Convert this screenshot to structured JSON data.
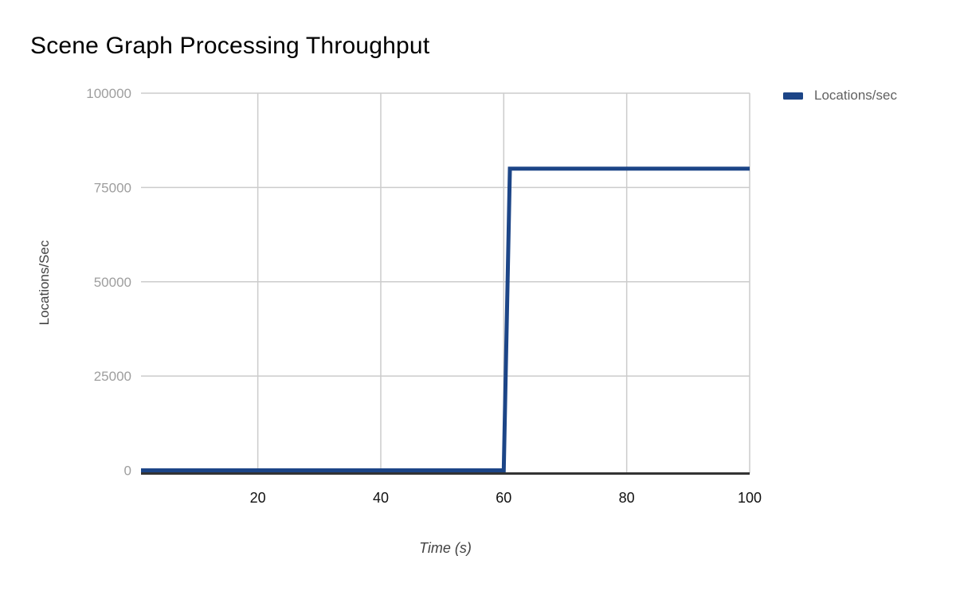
{
  "header": {
    "title": "Scene Graph Processing Throughput"
  },
  "legend": {
    "position": "right-top",
    "items": [
      {
        "label": "Locations/sec",
        "color": "#1c4587"
      }
    ]
  },
  "chart_data": {
    "type": "line",
    "title": "Scene Graph Processing Throughput",
    "xlabel": "Time (s)",
    "ylabel": "Locations/Sec",
    "xlim": [
      1,
      100
    ],
    "ylim": [
      0,
      100000
    ],
    "xticks": [
      20,
      40,
      60,
      80,
      100
    ],
    "yticks": [
      0,
      25000,
      50000,
      75000,
      100000
    ],
    "grid": true,
    "legend_position": "right-top",
    "series": [
      {
        "name": "Locations/sec",
        "color": "#1c4587",
        "line_width": 5,
        "points": [
          [
            1,
            0
          ],
          [
            60,
            0
          ],
          [
            61,
            80000
          ],
          [
            100,
            80000
          ]
        ],
        "shape": "step: constant 0 until t=60, rises to 80000 at t=61, constant 80000 through t=100"
      }
    ],
    "colors": {
      "gridline": "#cccccc",
      "axis_line": "#333333",
      "x_tick_label": "#111111",
      "y_tick_label": "#9e9e9e",
      "axis_title": "#424242",
      "title": "#000000",
      "legend_text": "#616161"
    }
  }
}
